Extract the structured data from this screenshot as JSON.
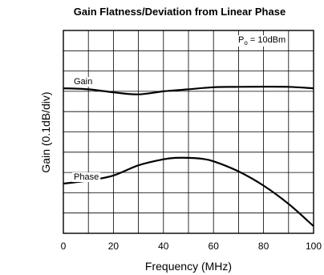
{
  "chart_data": {
    "type": "line",
    "title": "Gain Flatness/Deviation from Linear Phase",
    "xlabel": "Frequency (MHz)",
    "ylabel": "Gain (0.1dB/div)",
    "xlim": [
      0,
      100
    ],
    "x_ticks": [
      "0",
      "20",
      "40",
      "60",
      "80",
      "100"
    ],
    "grid": true,
    "grid_divisions": {
      "x": 10,
      "y": 10
    },
    "annotation": {
      "main": "P",
      "sub": "o",
      "rest": " = 10dBm"
    },
    "series": [
      {
        "name": "Gain",
        "x": [
          0,
          10,
          20,
          30,
          40,
          50,
          60,
          70,
          80,
          90,
          100
        ],
        "y": [
          7.15,
          7.1,
          6.95,
          6.85,
          7.0,
          7.1,
          7.2,
          7.22,
          7.23,
          7.22,
          7.15
        ]
      },
      {
        "name": "Phase",
        "x": [
          0,
          10,
          20,
          30,
          40,
          45,
          50,
          55,
          60,
          70,
          80,
          90,
          100
        ],
        "y": [
          2.45,
          2.6,
          2.85,
          3.35,
          3.65,
          3.72,
          3.72,
          3.68,
          3.55,
          3.05,
          2.35,
          1.45,
          0.35
        ]
      }
    ]
  }
}
